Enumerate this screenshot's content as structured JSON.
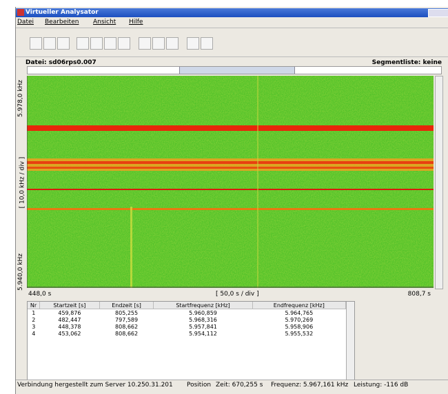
{
  "window": {
    "title": "Virtueller Analysator"
  },
  "menu": [
    "Datei",
    "Bearbeiten",
    "Ansicht",
    "Hilfe"
  ],
  "panel": {
    "file": "Datei: sd06rps0.007",
    "segments": "Segmentliste: keine"
  },
  "spectrogram": {
    "y_top": "5.978,0 kHz",
    "y_scale": "[ 10,0 kHz / div ]",
    "y_bottom": "5.940,0 kHz",
    "x_start": "448,0 s",
    "x_scale": "[ 50,0 s / div ]",
    "x_end": "808,7 s"
  },
  "table": {
    "columns": [
      "Nr",
      "Startzeit [s]",
      "Endzeit [s]",
      "Startfrequenz [kHz]",
      "Endfrequenz [kHz]"
    ],
    "rows": [
      [
        "1",
        "459,876",
        "805,255",
        "5.960,859",
        "5.964,765"
      ],
      [
        "2",
        "482,447",
        "797,589",
        "5.968,316",
        "5.970,269"
      ],
      [
        "3",
        "448,378",
        "808,662",
        "5.957,841",
        "5.958,906"
      ],
      [
        "4",
        "453,062",
        "808,662",
        "5.954,112",
        "5.955,532"
      ]
    ]
  },
  "status": {
    "connection": "Verbindung hergestellt zum Server 10.250.31.201",
    "position": "Position",
    "time": "Zeit: 670,255 s",
    "frequency": "Frequenz: 5.967,161 kHz",
    "power": "Leistung: -116 dB"
  }
}
